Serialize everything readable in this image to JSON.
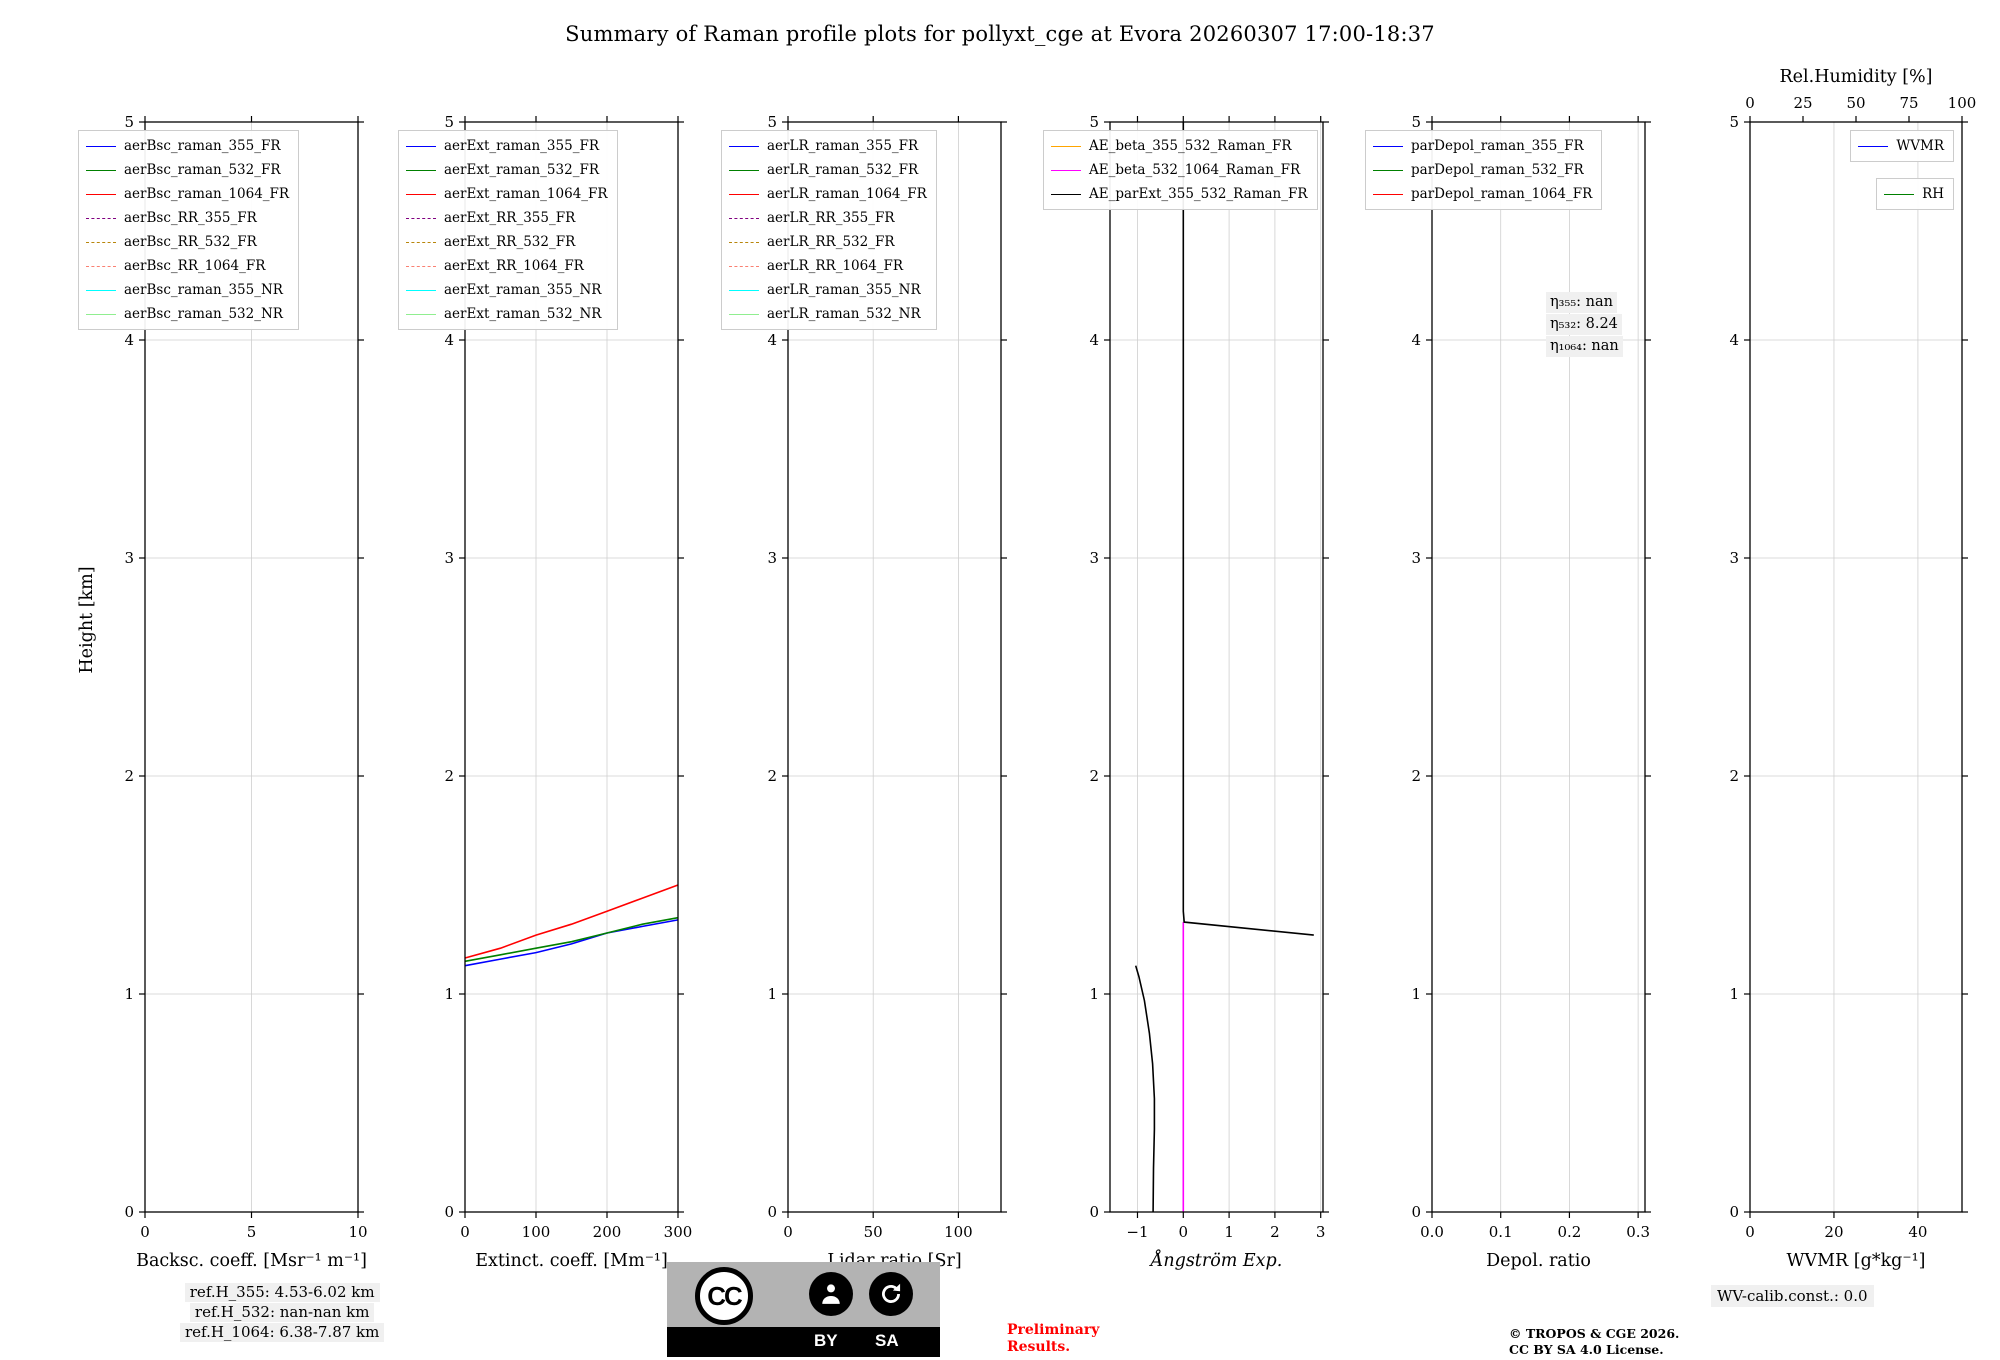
{
  "title": "Summary of Raman profile plots for pollyxt_cge at Evora 20260307 17:00-18:37",
  "chart_data": {
    "type": "line",
    "ylabel": "Height [km]",
    "ylim": [
      0,
      5
    ],
    "yticks": [
      0,
      1,
      2,
      3,
      4,
      5
    ],
    "ytick_labels": [
      "0",
      "1",
      "2",
      "3",
      "4",
      "5"
    ],
    "grid": true,
    "legend_position": "upper left",
    "plots": [
      {
        "name": "backscatter",
        "xlabel": "Backsc. coeff. [Msr⁻¹ m⁻¹]",
        "xlim": [
          0,
          10
        ],
        "xticks": [
          0,
          5,
          10
        ],
        "xtick_labels": [
          "0",
          "5",
          "10"
        ],
        "legend": [
          {
            "label": "aerBsc_raman_355_FR",
            "color": "#0000ff",
            "style": "solid"
          },
          {
            "label": "aerBsc_raman_532_FR",
            "color": "#008000",
            "style": "solid"
          },
          {
            "label": "aerBsc_raman_1064_FR",
            "color": "#ff0000",
            "style": "solid"
          },
          {
            "label": "aerBsc_RR_355_FR",
            "color": "#800080",
            "style": "dashed"
          },
          {
            "label": "aerBsc_RR_532_FR",
            "color": "#b8860b",
            "style": "dashed"
          },
          {
            "label": "aerBsc_RR_1064_FR",
            "color": "#fa8072",
            "style": "dashed"
          },
          {
            "label": "aerBsc_raman_355_NR",
            "color": "#00ffff",
            "style": "solid"
          },
          {
            "label": "aerBsc_raman_532_NR",
            "color": "#90ee90",
            "style": "solid"
          }
        ],
        "series": []
      },
      {
        "name": "extinction",
        "xlabel": "Extinct. coeff. [Mm⁻¹]",
        "xlim": [
          0,
          300
        ],
        "xticks": [
          0,
          100,
          200,
          300
        ],
        "xtick_labels": [
          "0",
          "100",
          "200",
          "300"
        ],
        "legend": [
          {
            "label": "aerExt_raman_355_FR",
            "color": "#0000ff",
            "style": "solid"
          },
          {
            "label": "aerExt_raman_532_FR",
            "color": "#008000",
            "style": "solid"
          },
          {
            "label": "aerExt_raman_1064_FR",
            "color": "#ff0000",
            "style": "solid"
          },
          {
            "label": "aerExt_RR_355_FR",
            "color": "#800080",
            "style": "dashed"
          },
          {
            "label": "aerExt_RR_532_FR",
            "color": "#b8860b",
            "style": "dashed"
          },
          {
            "label": "aerExt_RR_1064_FR",
            "color": "#fa8072",
            "style": "dashed"
          },
          {
            "label": "aerExt_raman_355_NR",
            "color": "#00ffff",
            "style": "solid"
          },
          {
            "label": "aerExt_raman_532_NR",
            "color": "#90ee90",
            "style": "solid"
          }
        ],
        "series": [
          {
            "name": "aerExt_raman_355_FR",
            "color": "#0000ff",
            "style": "solid",
            "points": [
              [
                0,
                1.13
              ],
              [
                50,
                1.16
              ],
              [
                100,
                1.19
              ],
              [
                150,
                1.23
              ],
              [
                200,
                1.28
              ],
              [
                250,
                1.31
              ],
              [
                300,
                1.34
              ]
            ]
          },
          {
            "name": "aerExt_raman_532_FR",
            "color": "#008000",
            "style": "solid",
            "points": [
              [
                0,
                1.15
              ],
              [
                50,
                1.18
              ],
              [
                100,
                1.21
              ],
              [
                150,
                1.24
              ],
              [
                200,
                1.28
              ],
              [
                250,
                1.32
              ],
              [
                300,
                1.35
              ]
            ]
          },
          {
            "name": "aerExt_raman_1064_FR",
            "color": "#ff0000",
            "style": "solid",
            "points": [
              [
                0,
                1.165
              ],
              [
                50,
                1.21
              ],
              [
                100,
                1.27
              ],
              [
                150,
                1.32
              ],
              [
                200,
                1.38
              ],
              [
                250,
                1.44
              ],
              [
                300,
                1.5
              ]
            ]
          }
        ]
      },
      {
        "name": "lidar-ratio",
        "xlabel": "Lidar ratio [Sr]",
        "xlim": [
          0,
          125
        ],
        "xticks": [
          0,
          50,
          100
        ],
        "xtick_labels": [
          "0",
          "50",
          "100"
        ],
        "legend": [
          {
            "label": "aerLR_raman_355_FR",
            "color": "#0000ff",
            "style": "solid"
          },
          {
            "label": "aerLR_raman_532_FR",
            "color": "#008000",
            "style": "solid"
          },
          {
            "label": "aerLR_raman_1064_FR",
            "color": "#ff0000",
            "style": "solid"
          },
          {
            "label": "aerLR_RR_355_FR",
            "color": "#800080",
            "style": "dashed"
          },
          {
            "label": "aerLR_RR_532_FR",
            "color": "#b8860b",
            "style": "dashed"
          },
          {
            "label": "aerLR_RR_1064_FR",
            "color": "#fa8072",
            "style": "dashed"
          },
          {
            "label": "aerLR_raman_355_NR",
            "color": "#00ffff",
            "style": "solid"
          },
          {
            "label": "aerLR_raman_532_NR",
            "color": "#90ee90",
            "style": "solid"
          }
        ],
        "series": []
      },
      {
        "name": "angstrom-exponent",
        "xlabel": "Ångström Exp.",
        "xlabel_italic": true,
        "xlim": [
          -1.6,
          3.05
        ],
        "xticks": [
          -1,
          0,
          1,
          2,
          3
        ],
        "xtick_labels": [
          "−1",
          "0",
          "1",
          "2",
          "3"
        ],
        "legend": [
          {
            "label": "AE_beta_355_532_Raman_FR",
            "color": "#ffa500",
            "style": "solid"
          },
          {
            "label": "AE_beta_532_1064_Raman_FR",
            "color": "#ff00ff",
            "style": "solid"
          },
          {
            "label": "AE_parExt_355_532_Raman_FR",
            "color": "#000000",
            "style": "solid"
          }
        ],
        "series": [
          {
            "name": "AE_beta_532_1064_Raman_FR",
            "color": "#ff00ff",
            "style": "solid",
            "points": [
              [
                0,
                0
              ],
              [
                0,
                1.33
              ]
            ]
          },
          {
            "name": "AE_parExt_355_532_Raman_FR",
            "color": "#000000",
            "style": "solid",
            "points": [
              [
                -0.66,
                0
              ],
              [
                -0.65,
                0.2
              ],
              [
                -0.63,
                0.38
              ],
              [
                -0.63,
                0.52
              ],
              [
                -0.67,
                0.68
              ],
              [
                -0.74,
                0.82
              ],
              [
                -0.85,
                0.97
              ],
              [
                -0.97,
                1.08
              ],
              [
                -1.04,
                1.13
              ]
            ]
          },
          {
            "name": "AE_parExt_355_532_Raman_FR",
            "color": "#000000",
            "style": "solid",
            "points": [
              [
                2.85,
                1.27
              ],
              [
                0.02,
                1.33
              ],
              [
                0,
                1.38
              ],
              [
                0,
                5
              ]
            ]
          }
        ]
      },
      {
        "name": "depolarization",
        "xlabel": "Depol. ratio",
        "xlim": [
          0,
          0.31
        ],
        "xticks": [
          0,
          0.1,
          0.2,
          0.3
        ],
        "xtick_labels": [
          "0.0",
          "0.1",
          "0.2",
          "0.3"
        ],
        "legend": [
          {
            "label": "parDepol_raman_355_FR",
            "color": "#0000ff",
            "style": "solid"
          },
          {
            "label": "parDepol_raman_532_FR",
            "color": "#008000",
            "style": "solid"
          },
          {
            "label": "parDepol_raman_1064_FR",
            "color": "#ff0000",
            "style": "solid"
          }
        ],
        "series": []
      },
      {
        "name": "wvmr",
        "xlabel": "WVMR [g*kg⁻¹]",
        "xlim": [
          0,
          50.5
        ],
        "xticks": [
          0,
          20,
          40
        ],
        "xtick_labels": [
          "0",
          "20",
          "40"
        ],
        "top_axis": {
          "label": "Rel.Humidity [%]",
          "xlim": [
            0,
            100
          ],
          "ticks": [
            0,
            25,
            50,
            75,
            100
          ],
          "tick_labels": [
            "0",
            "25",
            "50",
            "75",
            "100"
          ]
        },
        "legend": [
          {
            "label": "WVMR",
            "color": "#0000ff",
            "style": "solid"
          },
          {
            "label": "RH",
            "color": "#008000",
            "style": "solid"
          }
        ],
        "legend_separate": true,
        "series": []
      }
    ]
  },
  "annotations": {
    "eta": [
      "η₃₅₅: nan",
      "η₅₃₂: 8.24",
      "η₁₀₆₄: nan"
    ],
    "ref_heights": [
      "ref.H_355: 4.53-6.02 km",
      "ref.H_532: nan-nan km",
      "ref.H_1064: 6.38-7.87 km"
    ],
    "wv_calib": "WV-calib.const.: 0.0",
    "preliminary": [
      "Preliminary",
      "Results."
    ],
    "copyright": [
      "© TROPOS & CGE 2026.",
      "CC BY SA 4.0 License."
    ],
    "cc_badge": {
      "cc": "CC",
      "by": "BY",
      "sa": "SA"
    }
  },
  "colors": {
    "grid": "#cfcfcf",
    "axis": "#000000",
    "annotation_bg": "#f0f0f0",
    "preliminary_red": "#ff0000",
    "badge_gray": "#b3b3b3"
  }
}
